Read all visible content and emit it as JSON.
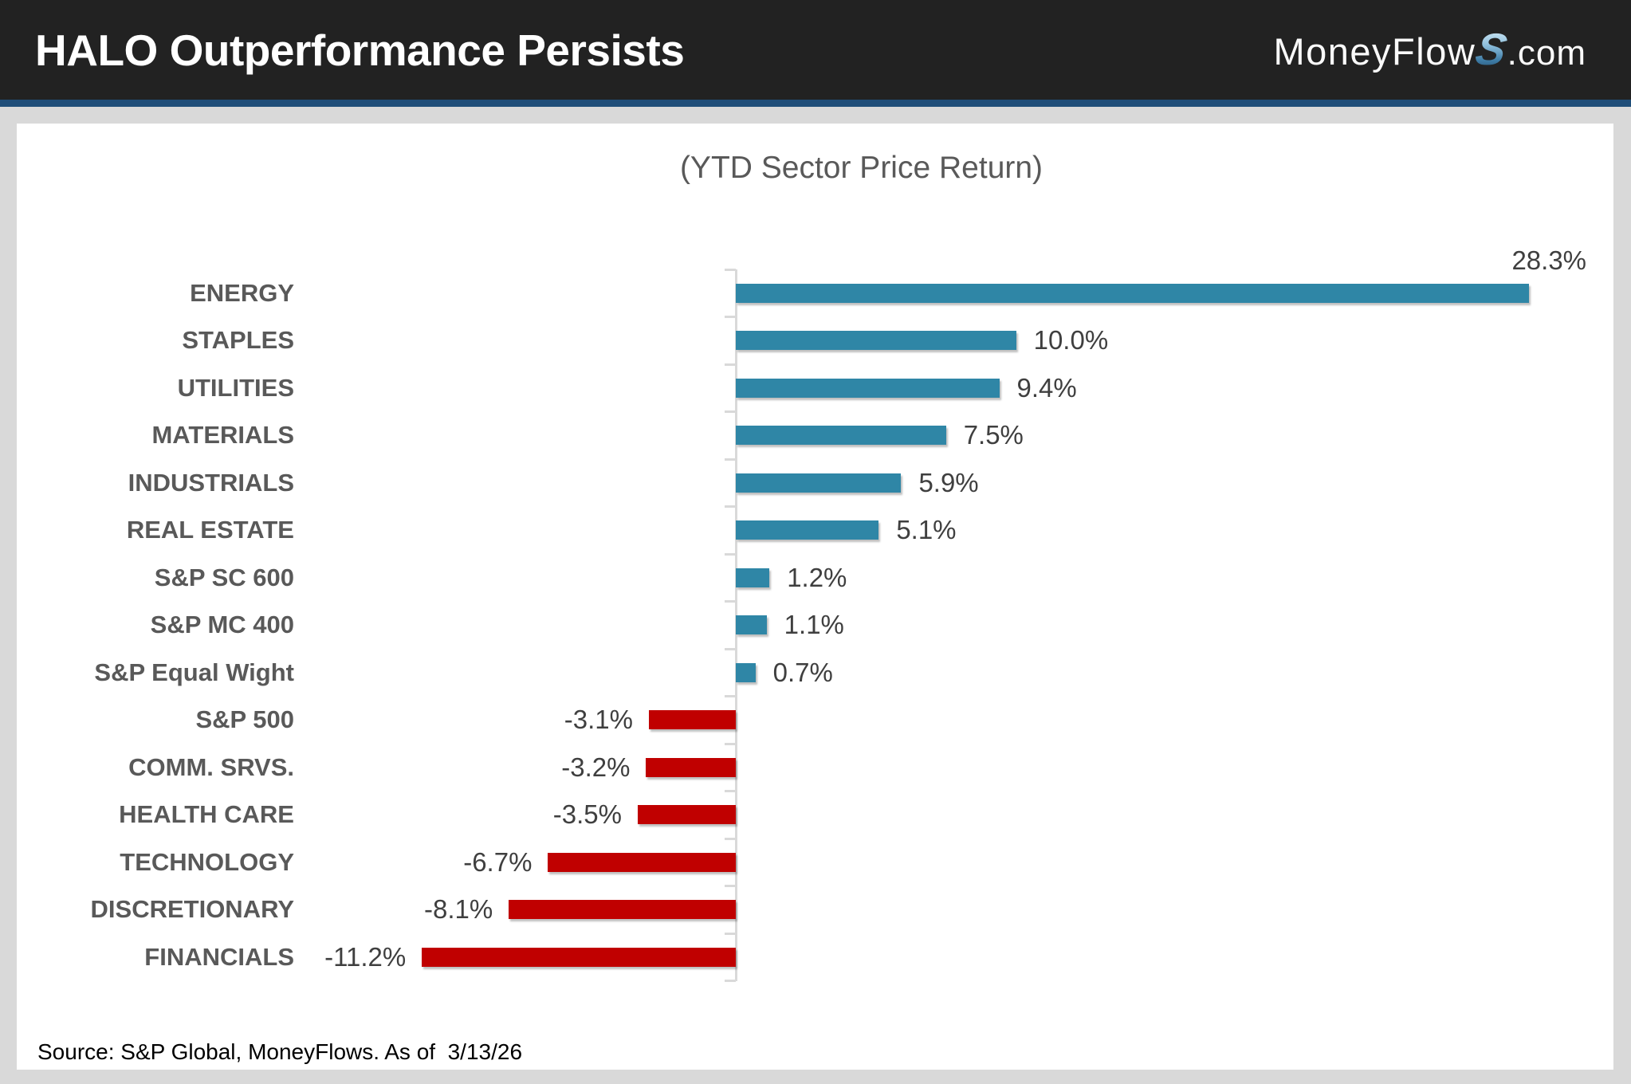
{
  "header": {
    "title": "HALO Outperformance Persists",
    "logo": {
      "prefix": "MoneyFlow",
      "s": "S",
      "suffix": ".com"
    }
  },
  "chart_data": {
    "type": "bar",
    "orientation": "horizontal",
    "title": "(YTD Sector Price Return)",
    "categories": [
      "ENERGY",
      "STAPLES",
      "UTILITIES",
      "MATERIALS",
      "INDUSTRIALS",
      "REAL ESTATE",
      "S&P SC 600",
      "S&P MC 400",
      "S&P Equal Wight",
      "S&P 500",
      "COMM. SRVS.",
      "HEALTH CARE",
      "TECHNOLOGY",
      "DISCRETIONARY",
      "FINANCIALS"
    ],
    "values": [
      28.3,
      10.0,
      9.4,
      7.5,
      5.9,
      5.1,
      1.2,
      1.1,
      0.7,
      -3.1,
      -3.2,
      -3.5,
      -6.7,
      -8.1,
      -11.2
    ],
    "value_labels": [
      "28.3%",
      "10.0%",
      "9.4%",
      "7.5%",
      "5.9%",
      "5.1%",
      "1.2%",
      "1.1%",
      "0.7%",
      "-3.1%",
      "-3.2%",
      "-3.5%",
      "-6.7%",
      "-8.1%",
      "-11.2%"
    ],
    "value_unit": "%",
    "xlim": [
      -12.5,
      30
    ],
    "grid": false,
    "legend": "none",
    "colors": {
      "positive": "#2F86A6",
      "negative": "#C00000",
      "axis": "#d9d9d9"
    }
  },
  "footer": {
    "source": "Source: S&P Global, MoneyFlows. As of  3/13/26"
  }
}
